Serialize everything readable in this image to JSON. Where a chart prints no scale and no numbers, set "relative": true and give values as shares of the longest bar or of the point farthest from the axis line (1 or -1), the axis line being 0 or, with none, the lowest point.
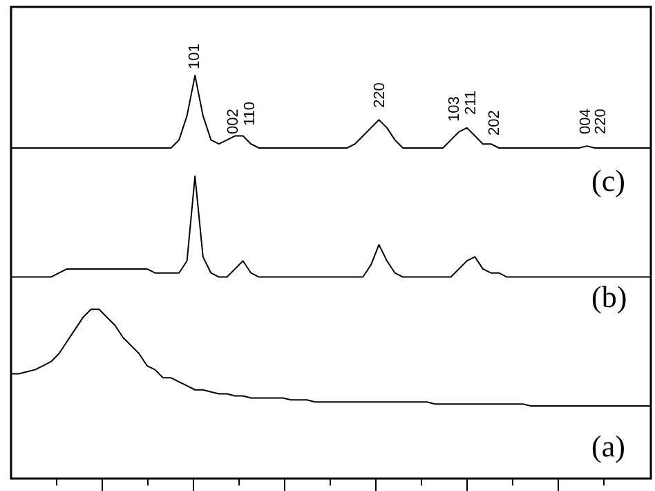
{
  "chart_data": {
    "type": "line",
    "relative": true,
    "categories": [
      null,
      null,
      null,
      null,
      null,
      null,
      null,
      null,
      null,
      null,
      null,
      null,
      null,
      null,
      null,
      null,
      null,
      null,
      null,
      null,
      null,
      null,
      null,
      null,
      null,
      null,
      null,
      null,
      null,
      null,
      null,
      null,
      null,
      null,
      null,
      null,
      null,
      null,
      null,
      null,
      null,
      null,
      null,
      null,
      null,
      null,
      null,
      null,
      null,
      null,
      null,
      null,
      null,
      null,
      null,
      null,
      null,
      null,
      null,
      null,
      null,
      null,
      null,
      null,
      null,
      null,
      null,
      null,
      null,
      null,
      null,
      null,
      null,
      null,
      null,
      null,
      null,
      null,
      null,
      null,
      null
    ],
    "series": [
      {
        "name": "(c)",
        "color": "#000000",
        "values": [
          0.82,
          0.82,
          0.82,
          0.82,
          0.82,
          0.82,
          0.82,
          0.82,
          0.82,
          0.82,
          0.82,
          0.82,
          0.82,
          0.82,
          0.82,
          0.82,
          0.82,
          0.82,
          0.82,
          0.82,
          0.82,
          0.84,
          0.9,
          1.0,
          0.9,
          0.84,
          0.83,
          0.84,
          0.85,
          0.85,
          0.83,
          0.82,
          0.82,
          0.82,
          0.82,
          0.82,
          0.82,
          0.82,
          0.82,
          0.82,
          0.82,
          0.82,
          0.82,
          0.83,
          0.85,
          0.87,
          0.89,
          0.87,
          0.84,
          0.82,
          0.82,
          0.82,
          0.82,
          0.82,
          0.82,
          0.84,
          0.86,
          0.87,
          0.85,
          0.83,
          0.83,
          0.82,
          0.82,
          0.82,
          0.82,
          0.82,
          0.82,
          0.82,
          0.82,
          0.82,
          0.82,
          0.82,
          0.825,
          0.82,
          0.82,
          0.82,
          0.82,
          0.82,
          0.82,
          0.82,
          0.82
        ]
      },
      {
        "name": "(b)",
        "color": "#000000",
        "values": [
          0.5,
          0.5,
          0.5,
          0.5,
          0.5,
          0.5,
          0.51,
          0.52,
          0.52,
          0.52,
          0.52,
          0.52,
          0.52,
          0.52,
          0.52,
          0.52,
          0.52,
          0.52,
          0.51,
          0.51,
          0.51,
          0.51,
          0.54,
          0.75,
          0.55,
          0.51,
          0.5,
          0.5,
          0.52,
          0.54,
          0.51,
          0.5,
          0.5,
          0.5,
          0.5,
          0.5,
          0.5,
          0.5,
          0.5,
          0.5,
          0.5,
          0.5,
          0.5,
          0.5,
          0.5,
          0.53,
          0.58,
          0.54,
          0.51,
          0.5,
          0.5,
          0.5,
          0.5,
          0.5,
          0.5,
          0.5,
          0.52,
          0.54,
          0.55,
          0.52,
          0.51,
          0.51,
          0.5,
          0.5,
          0.5,
          0.5,
          0.5,
          0.5,
          0.5,
          0.5,
          0.5,
          0.5,
          0.5,
          0.5,
          0.5,
          0.5,
          0.5,
          0.5,
          0.5,
          0.5,
          0.5
        ]
      },
      {
        "name": "(a)",
        "color": "#000000",
        "values": [
          0.26,
          0.26,
          0.265,
          0.27,
          0.28,
          0.29,
          0.31,
          0.34,
          0.37,
          0.4,
          0.42,
          0.42,
          0.4,
          0.38,
          0.35,
          0.33,
          0.31,
          0.28,
          0.27,
          0.25,
          0.25,
          0.24,
          0.23,
          0.22,
          0.22,
          0.215,
          0.21,
          0.21,
          0.205,
          0.205,
          0.2,
          0.2,
          0.2,
          0.2,
          0.2,
          0.195,
          0.195,
          0.195,
          0.19,
          0.19,
          0.19,
          0.19,
          0.19,
          0.19,
          0.19,
          0.19,
          0.19,
          0.19,
          0.19,
          0.19,
          0.19,
          0.19,
          0.19,
          0.185,
          0.185,
          0.185,
          0.185,
          0.185,
          0.185,
          0.185,
          0.185,
          0.185,
          0.185,
          0.185,
          0.185,
          0.18,
          0.18,
          0.18,
          0.18,
          0.18,
          0.18,
          0.18,
          0.18,
          0.18,
          0.18,
          0.18,
          0.18,
          0.18,
          0.18,
          0.18,
          0.18
        ]
      }
    ],
    "annotations": [
      "101",
      "002",
      "110",
      "220",
      "103",
      "211",
      "202",
      "004",
      "220"
    ]
  }
}
